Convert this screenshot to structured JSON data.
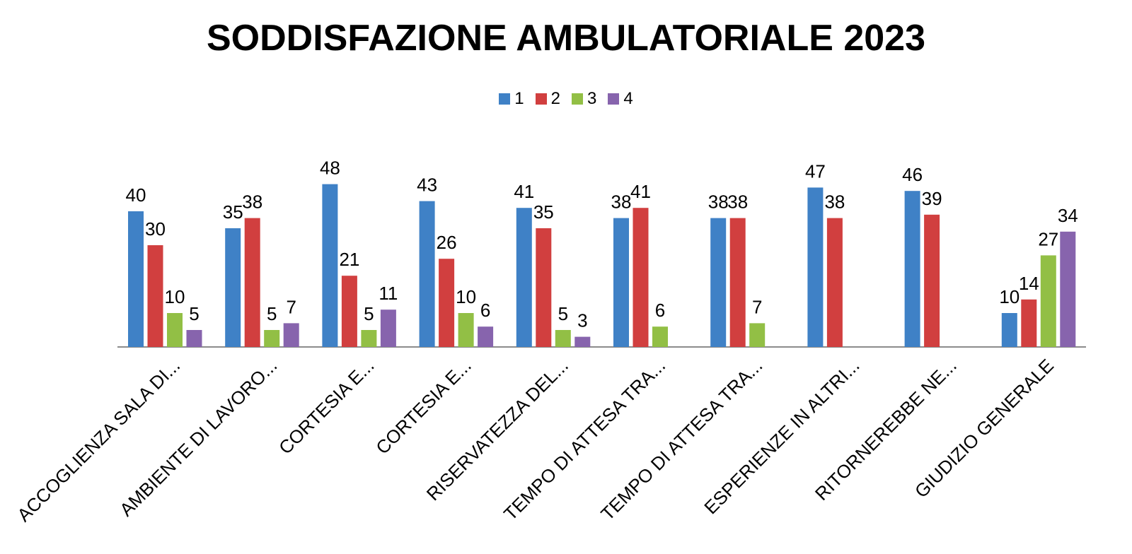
{
  "chart_data": {
    "type": "bar",
    "title": "SODDISFAZIONE AMBULATORIALE 2023",
    "categories": [
      "ACCOGLIENZA SALA DI...",
      "AMBIENTE DI LAVORO...",
      "CORTESIA E...",
      "CORTESIA E...",
      "RISERVATEZZA DEL...",
      "TEMPO DI ATTESA TRA...",
      "TEMPO DI ATTESA TRA...",
      "ESPERIENZE IN ALTRI...",
      "RITORNEREBBE NE...",
      "GIUDIZIO GENERALE"
    ],
    "series": [
      {
        "name": "1",
        "color": "#3f81c6",
        "values": [
          40,
          35,
          48,
          43,
          41,
          38,
          38,
          47,
          46,
          10
        ]
      },
      {
        "name": "2",
        "color": "#d13f3f",
        "values": [
          30,
          38,
          21,
          26,
          35,
          41,
          38,
          38,
          39,
          14
        ]
      },
      {
        "name": "3",
        "color": "#92bf45",
        "values": [
          10,
          5,
          5,
          10,
          5,
          6,
          7,
          null,
          null,
          27
        ]
      },
      {
        "name": "4",
        "color": "#8764ad",
        "values": [
          5,
          7,
          11,
          6,
          3,
          null,
          null,
          null,
          null,
          34
        ]
      }
    ],
    "ylim": [
      0,
      50
    ],
    "grid": false,
    "legend_position": "top"
  }
}
